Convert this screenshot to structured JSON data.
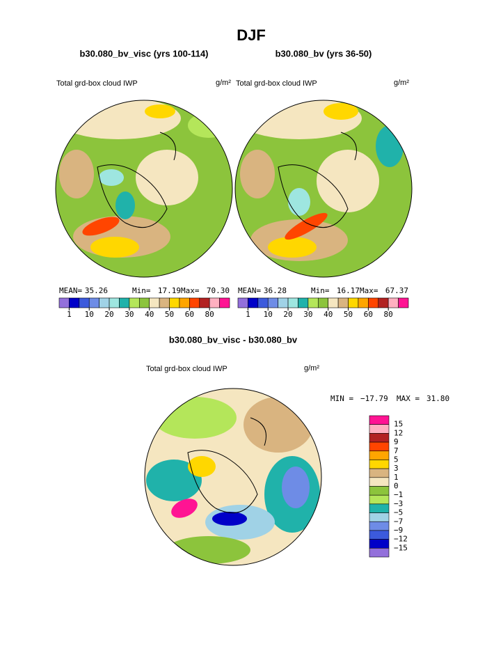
{
  "title": "DJF",
  "panels": [
    {
      "subtitle": "b30.080_bv_visc (yrs 100-114)",
      "field": "Total grd-box cloud IWP",
      "units": "g/m²",
      "stats": [
        {
          "label": "MEAN=",
          "value": "35.26"
        },
        {
          "label": "Min=",
          "value": "17.19"
        },
        {
          "label": "Max=",
          "value": "70.30"
        }
      ]
    },
    {
      "subtitle": "b30.080_bv (yrs 36-50)",
      "field": "Total grd-box cloud IWP",
      "units": "g/m²",
      "stats": [
        {
          "label": "MEAN=",
          "value": "36.28"
        },
        {
          "label": "Min=",
          "value": "16.17"
        },
        {
          "label": "Max=",
          "value": "67.37"
        }
      ]
    }
  ],
  "colorbar": {
    "colors": [
      "#9370db",
      "#0000c8",
      "#3c5adc",
      "#6e8ce6",
      "#a0d2e6",
      "#9ee6e0",
      "#20b2aa",
      "#b4e65a",
      "#8cc43c",
      "#f5e6c0",
      "#d9b480",
      "#ffd700",
      "#ffa500",
      "#ff4500",
      "#b22222",
      "#ffb0c0",
      "#ff1493"
    ],
    "labels": [
      "1",
      "10",
      "20",
      "30",
      "40",
      "50",
      "60",
      "80"
    ]
  },
  "difference": {
    "subtitle": "b30.080_bv_visc - b30.080_bv",
    "field": "Total grd-box cloud IWP",
    "units": "g/m²",
    "stats": [
      {
        "label": "MIN =",
        "value": "−17.79"
      },
      {
        "label": "MAX =",
        "value": "31.80"
      }
    ],
    "colorbar": {
      "colors": [
        "#ff1493",
        "#ffb0c0",
        "#b22222",
        "#ff4500",
        "#ffa500",
        "#ffd700",
        "#d9b480",
        "#f5e6c0",
        "#8cc43c",
        "#b4e65a",
        "#20b2aa",
        "#a0d2e6",
        "#6e8ce6",
        "#3c5adc",
        "#0000c8",
        "#9370db"
      ],
      "labels": [
        "15",
        "12",
        "9",
        "7",
        "5",
        "3",
        "1",
        "0",
        "−1",
        "−3",
        "−5",
        "−7",
        "−9",
        "−12",
        "−15"
      ]
    }
  }
}
